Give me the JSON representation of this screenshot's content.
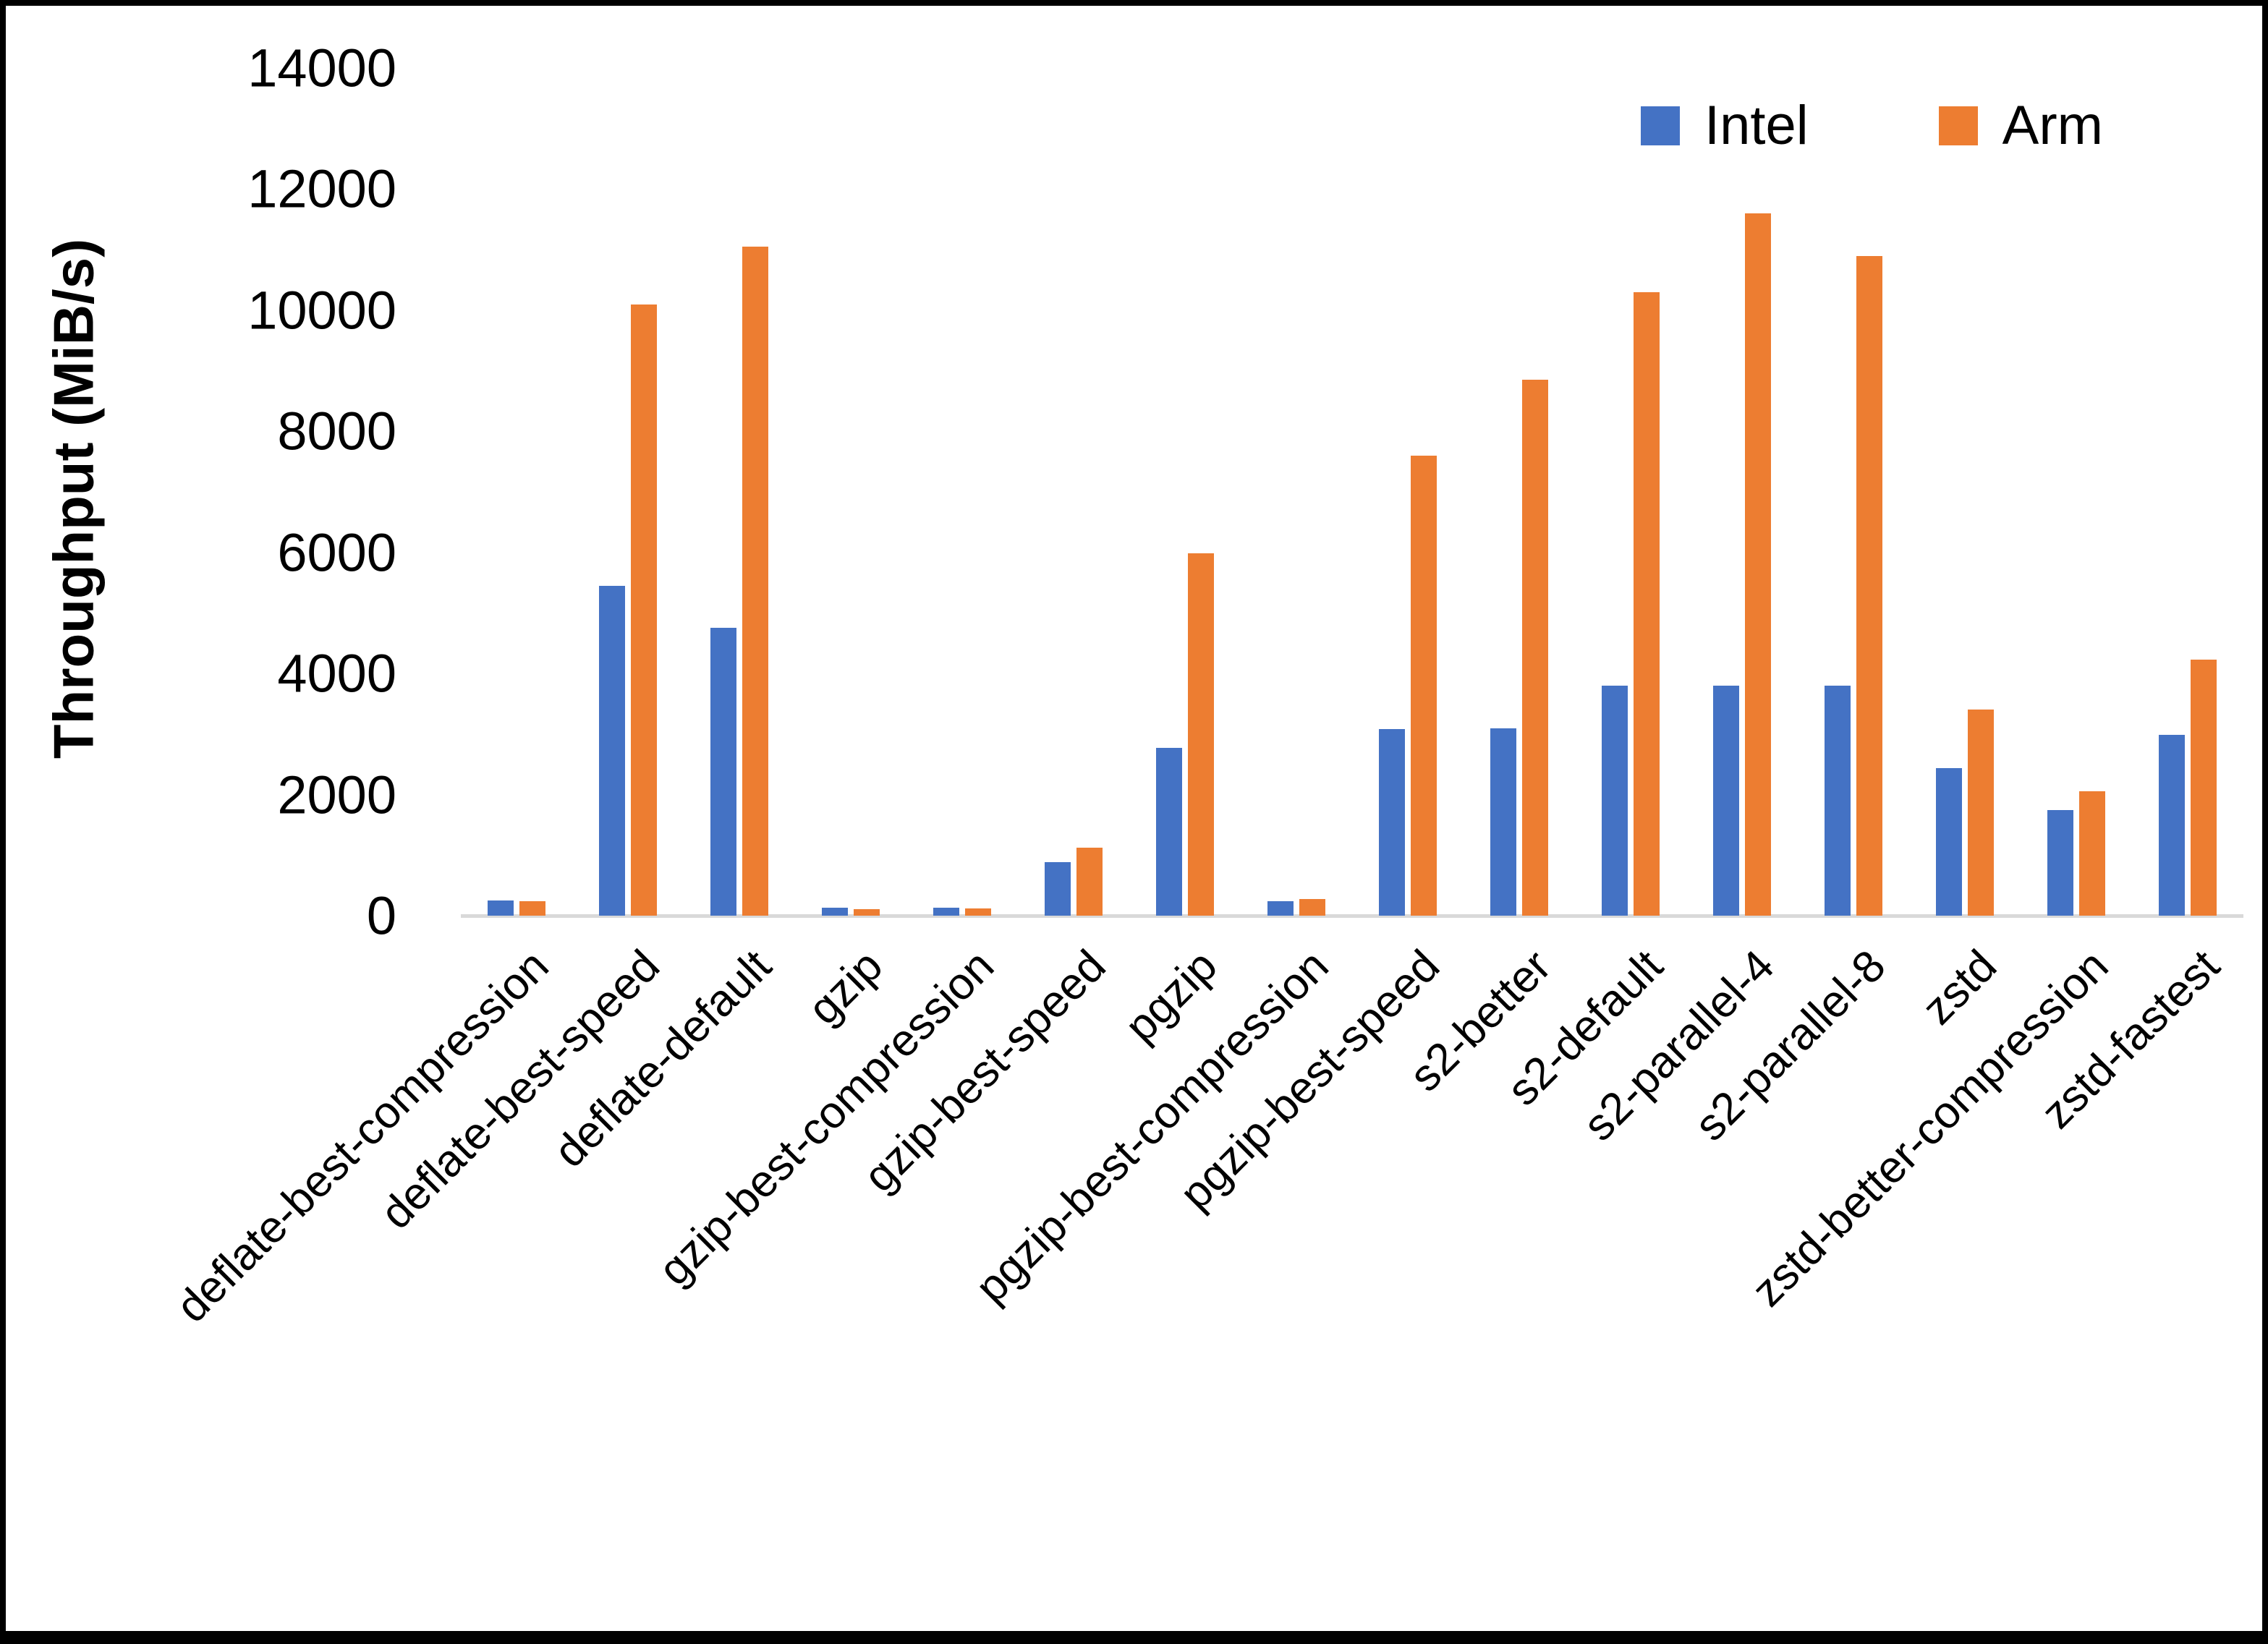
{
  "chart_data": {
    "type": "bar",
    "title": "",
    "xlabel": "",
    "ylabel": "Throughput (MiB/s)",
    "ylim": [
      0,
      14000
    ],
    "ytick_step": 2000,
    "ytick_labels": [
      "0",
      "2000",
      "4000",
      "6000",
      "8000",
      "10000",
      "12000",
      "14000"
    ],
    "grid": false,
    "legend_position": "top-right",
    "axis_line_color": "#d9d9d9",
    "categories": [
      "deflate-best-compression",
      "deflate-best-speed",
      "deflate-default",
      "gzip",
      "gzip-best-compression",
      "gzip-best-speed",
      "pgzip",
      "pgzip-best-compression",
      "pgzip-best-speed",
      "s2-better",
      "s2-default",
      "s2-parallel-4",
      "s2-parallel-8",
      "zstd",
      "zstd-better-compression",
      "zstd-fastest"
    ],
    "series": [
      {
        "name": "Intel",
        "color": "#4472C4",
        "values": [
          250,
          5450,
          4750,
          130,
          130,
          880,
          2770,
          245,
          3080,
          3090,
          3800,
          3800,
          3800,
          2440,
          1750,
          2990
        ]
      },
      {
        "name": "Arm",
        "color": "#ED7D31",
        "values": [
          240,
          10100,
          11050,
          110,
          120,
          1120,
          5980,
          270,
          7600,
          8850,
          10300,
          11600,
          10900,
          3400,
          2050,
          4230
        ]
      }
    ]
  }
}
